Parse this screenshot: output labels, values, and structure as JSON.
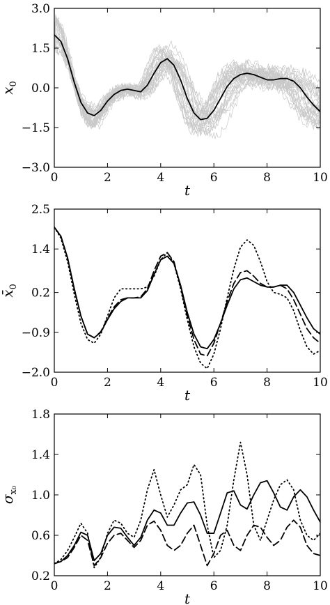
{
  "chart_data": [
    {
      "type": "line",
      "title": "",
      "xlabel": "t",
      "ylabel": "x",
      "ylabel_sub": "0",
      "xlim": [
        0,
        10
      ],
      "ylim": [
        -3.0,
        3.0
      ],
      "xticks": [
        "0",
        "2",
        "4",
        "6",
        "8",
        "10"
      ],
      "yticks": [
        "−3.0",
        "−1.5",
        "0.0",
        "1.5",
        "3.0"
      ],
      "ytick_values": [
        -3.0,
        -1.5,
        0.0,
        1.5,
        3.0
      ],
      "grid": false,
      "legend": "none",
      "background_samples": 30,
      "background_color": "#c8c8c8",
      "series": [
        {
          "style": "solid",
          "color": "#000000",
          "x": [
            0,
            0.25,
            0.5,
            0.75,
            1.0,
            1.25,
            1.5,
            1.75,
            2.0,
            2.25,
            2.5,
            2.75,
            3.0,
            3.25,
            3.5,
            3.75,
            4.0,
            4.25,
            4.5,
            4.75,
            5.0,
            5.25,
            5.5,
            5.75,
            6.0,
            6.25,
            6.5,
            6.75,
            7.0,
            7.25,
            7.5,
            7.75,
            8.0,
            8.25,
            8.5,
            8.75,
            9.0,
            9.25,
            9.5,
            9.75,
            10.0
          ],
          "y": [
            2.0,
            1.75,
            1.1,
            0.2,
            -0.55,
            -0.95,
            -1.05,
            -0.85,
            -0.5,
            -0.25,
            -0.1,
            -0.05,
            -0.1,
            -0.15,
            0.1,
            0.55,
            0.95,
            1.1,
            0.85,
            0.3,
            -0.4,
            -0.95,
            -1.2,
            -1.15,
            -0.85,
            -0.4,
            0.05,
            0.35,
            0.5,
            0.55,
            0.5,
            0.4,
            0.3,
            0.3,
            0.35,
            0.35,
            0.25,
            0.0,
            -0.35,
            -0.65,
            -0.9
          ]
        }
      ]
    },
    {
      "type": "line",
      "title": "",
      "xlabel": "t",
      "ylabel": "x̄",
      "ylabel_sub": "0",
      "xlim": [
        0,
        10
      ],
      "ylim": [
        -2.0,
        2.5
      ],
      "xticks": [
        "0",
        "2",
        "4",
        "6",
        "8",
        "10"
      ],
      "yticks": [
        "−2.0",
        "−0.9",
        "0.2",
        "1.4",
        "2.5"
      ],
      "ytick_values": [
        -2.0,
        -0.9,
        0.2,
        1.4,
        2.5
      ],
      "grid": false,
      "legend": "none",
      "series": [
        {
          "style": "solid",
          "color": "#000000",
          "x": [
            0,
            0.25,
            0.5,
            0.75,
            1.0,
            1.25,
            1.5,
            1.75,
            2.0,
            2.25,
            2.5,
            2.75,
            3.0,
            3.25,
            3.5,
            3.75,
            4.0,
            4.25,
            4.5,
            4.75,
            5.0,
            5.25,
            5.5,
            5.75,
            6.0,
            6.25,
            6.5,
            6.75,
            7.0,
            7.25,
            7.5,
            7.75,
            8.0,
            8.25,
            8.5,
            8.75,
            9.0,
            9.25,
            9.5,
            9.75,
            10.0
          ],
          "y": [
            2.0,
            1.75,
            1.15,
            0.3,
            -0.45,
            -0.95,
            -1.05,
            -0.9,
            -0.55,
            -0.25,
            -0.05,
            0.05,
            0.05,
            0.05,
            0.25,
            0.7,
            1.1,
            1.2,
            1.0,
            0.4,
            -0.35,
            -0.95,
            -1.3,
            -1.35,
            -1.1,
            -0.65,
            -0.15,
            0.3,
            0.55,
            0.6,
            0.5,
            0.4,
            0.35,
            0.35,
            0.4,
            0.4,
            0.2,
            -0.15,
            -0.5,
            -0.8,
            -0.95
          ]
        },
        {
          "style": "dashed",
          "color": "#000000",
          "x": [
            0,
            0.25,
            0.5,
            0.75,
            1.0,
            1.25,
            1.5,
            1.75,
            2.0,
            2.25,
            2.5,
            2.75,
            3.0,
            3.25,
            3.5,
            3.75,
            4.0,
            4.25,
            4.5,
            4.75,
            5.0,
            5.25,
            5.5,
            5.75,
            6.0,
            6.25,
            6.5,
            6.75,
            7.0,
            7.25,
            7.5,
            7.75,
            8.0,
            8.25,
            8.5,
            8.75,
            9.0,
            9.25,
            9.5,
            9.75,
            10.0
          ],
          "y": [
            2.0,
            1.75,
            1.15,
            0.3,
            -0.45,
            -0.95,
            -1.05,
            -0.88,
            -0.52,
            -0.2,
            0.0,
            0.05,
            0.05,
            0.08,
            0.3,
            0.8,
            1.2,
            1.3,
            1.05,
            0.35,
            -0.45,
            -1.1,
            -1.5,
            -1.55,
            -1.2,
            -0.65,
            -0.05,
            0.45,
            0.75,
            0.8,
            0.65,
            0.45,
            0.35,
            0.35,
            0.4,
            0.3,
            0.0,
            -0.4,
            -0.8,
            -1.05,
            -1.2
          ]
        },
        {
          "style": "dotted",
          "color": "#000000",
          "x": [
            0,
            0.25,
            0.5,
            0.75,
            1.0,
            1.25,
            1.5,
            1.75,
            2.0,
            2.25,
            2.5,
            2.75,
            3.0,
            3.25,
            3.5,
            3.75,
            4.0,
            4.25,
            4.5,
            4.75,
            5.0,
            5.25,
            5.5,
            5.75,
            6.0,
            6.25,
            6.5,
            6.75,
            7.0,
            7.25,
            7.5,
            7.75,
            8.0,
            8.25,
            8.5,
            8.75,
            9.0,
            9.25,
            9.5,
            9.75,
            10.0
          ],
          "y": [
            2.0,
            1.7,
            1.05,
            0.15,
            -0.65,
            -1.1,
            -1.2,
            -0.95,
            -0.45,
            0.05,
            0.3,
            0.3,
            0.3,
            0.3,
            0.35,
            0.65,
            1.1,
            1.3,
            1.0,
            0.3,
            -0.55,
            -1.3,
            -1.75,
            -1.9,
            -1.5,
            -0.8,
            0.05,
            0.85,
            1.45,
            1.65,
            1.5,
            1.05,
            0.5,
            0.2,
            0.15,
            0.05,
            -0.3,
            -0.85,
            -1.3,
            -1.5,
            -1.4
          ]
        }
      ]
    },
    {
      "type": "line",
      "title": "",
      "xlabel": "t",
      "ylabel": "σ",
      "ylabel_sub": "x₀",
      "xlim": [
        0,
        10
      ],
      "ylim": [
        0.2,
        1.8
      ],
      "xticks": [
        "0",
        "2",
        "4",
        "6",
        "8",
        "10"
      ],
      "yticks": [
        "0.2",
        "0.6",
        "1.0",
        "1.4",
        "1.8"
      ],
      "ytick_values": [
        0.2,
        0.6,
        1.0,
        1.4,
        1.8
      ],
      "grid": false,
      "legend": "none",
      "series": [
        {
          "style": "solid",
          "color": "#000000",
          "x": [
            0,
            0.25,
            0.5,
            0.75,
            1.0,
            1.25,
            1.5,
            1.75,
            2.0,
            2.25,
            2.5,
            2.75,
            3.0,
            3.25,
            3.5,
            3.75,
            4.0,
            4.25,
            4.5,
            4.75,
            5.0,
            5.25,
            5.5,
            5.75,
            6.0,
            6.25,
            6.5,
            6.75,
            7.0,
            7.25,
            7.5,
            7.75,
            8.0,
            8.25,
            8.5,
            8.75,
            9.0,
            9.25,
            9.5,
            9.75,
            10.0
          ],
          "y": [
            0.32,
            0.34,
            0.4,
            0.5,
            0.63,
            0.6,
            0.35,
            0.42,
            0.6,
            0.68,
            0.67,
            0.58,
            0.5,
            0.58,
            0.75,
            0.85,
            0.82,
            0.7,
            0.7,
            0.82,
            0.92,
            0.93,
            0.8,
            0.62,
            0.62,
            0.82,
            1.02,
            1.04,
            0.9,
            0.86,
            1.0,
            1.12,
            1.14,
            1.02,
            0.88,
            0.85,
            0.98,
            1.05,
            0.98,
            0.85,
            0.73
          ]
        },
        {
          "style": "dashed",
          "color": "#000000",
          "x": [
            0,
            0.25,
            0.5,
            0.75,
            1.0,
            1.25,
            1.5,
            1.75,
            2.0,
            2.25,
            2.5,
            2.75,
            3.0,
            3.25,
            3.5,
            3.75,
            4.0,
            4.25,
            4.5,
            4.75,
            5.0,
            5.25,
            5.5,
            5.75,
            6.0,
            6.25,
            6.5,
            6.75,
            7.0,
            7.25,
            7.5,
            7.75,
            8.0,
            8.25,
            8.5,
            8.75,
            9.0,
            9.25,
            9.5,
            9.75,
            10.0
          ],
          "y": [
            0.32,
            0.34,
            0.38,
            0.48,
            0.6,
            0.55,
            0.3,
            0.38,
            0.52,
            0.6,
            0.62,
            0.55,
            0.48,
            0.55,
            0.7,
            0.74,
            0.65,
            0.5,
            0.45,
            0.5,
            0.62,
            0.7,
            0.5,
            0.3,
            0.42,
            0.6,
            0.65,
            0.5,
            0.45,
            0.6,
            0.7,
            0.68,
            0.58,
            0.5,
            0.55,
            0.68,
            0.75,
            0.68,
            0.5,
            0.42,
            0.4
          ]
        },
        {
          "style": "dotted",
          "color": "#000000",
          "x": [
            0,
            0.25,
            0.5,
            0.75,
            1.0,
            1.25,
            1.5,
            1.75,
            2.0,
            2.25,
            2.5,
            2.75,
            3.0,
            3.25,
            3.5,
            3.75,
            4.0,
            4.25,
            4.5,
            4.75,
            5.0,
            5.25,
            5.5,
            5.75,
            6.0,
            6.25,
            6.5,
            6.75,
            7.0,
            7.25,
            7.5,
            7.75,
            8.0,
            8.25,
            8.5,
            8.75,
            9.0,
            9.25,
            9.5,
            9.75,
            10.0
          ],
          "y": [
            0.32,
            0.36,
            0.45,
            0.58,
            0.72,
            0.62,
            0.28,
            0.38,
            0.62,
            0.75,
            0.72,
            0.62,
            0.58,
            0.75,
            1.05,
            1.25,
            1.0,
            0.78,
            0.9,
            1.05,
            1.1,
            1.3,
            1.2,
            0.7,
            0.38,
            0.45,
            0.7,
            1.15,
            1.52,
            1.2,
            0.7,
            0.55,
            0.75,
            0.95,
            1.1,
            1.15,
            1.05,
            0.75,
            0.6,
            0.55,
            0.62
          ]
        }
      ]
    }
  ]
}
